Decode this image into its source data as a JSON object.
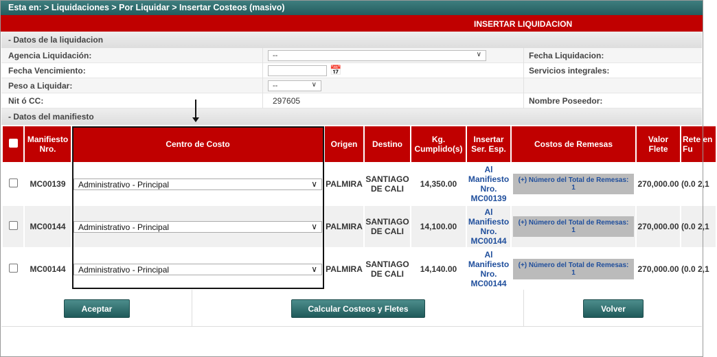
{
  "breadcrumb": "Esta en: > Liquidaciones > Por Liquidar > Insertar Costeos (masivo)",
  "title": "INSERTAR LIQUIDACION",
  "section1": "- Datos de la liquidacion",
  "section2": "- Datos del manifiesto",
  "form": {
    "agencia_label": "Agencia Liquidación:",
    "agencia_value": "--",
    "fecha_liq_label": "Fecha Liquidacion:",
    "fecha_venc_label": "Fecha Vencimiento:",
    "fecha_venc_value": "",
    "servicios_label": "Servicios integrales:",
    "peso_label": "Peso a Liquidar:",
    "peso_value": "--",
    "nit_label": "Nit ó CC:",
    "nit_value": "297605",
    "poseedor_label": "Nombre Poseedor:"
  },
  "table": {
    "headers": [
      "Manifiesto Nro.",
      "Centro de Costo",
      "Origen",
      "Destino",
      "Kg. Cumplido(s)",
      "Insertar Ser. Esp.",
      "Costos de Remesas",
      "Valor Flete",
      "Rete en Fu"
    ],
    "rows": [
      {
        "manifiesto": "MC00139",
        "centro": "Administrativo - Principal",
        "origen": "PALMIRA",
        "destino": "SANTIAGO DE CALI",
        "kg": "14,350.00",
        "insertar": "Al Manifiesto Nro. MC00139",
        "costos": "(+) Número del Total de Remesas: 1",
        "flete": "270,000.00",
        "rete": "(0.0 2,1"
      },
      {
        "manifiesto": "MC00144",
        "centro": "Administrativo - Principal",
        "origen": "PALMIRA",
        "destino": "SANTIAGO DE CALI",
        "kg": "14,100.00",
        "insertar": "Al Manifiesto Nro. MC00144",
        "costos": "(+) Número del Total de Remesas: 1",
        "flete": "270,000.00",
        "rete": "(0.0 2,1"
      },
      {
        "manifiesto": "MC00144",
        "centro": "Administrativo - Principal",
        "origen": "PALMIRA",
        "destino": "SANTIAGO DE CALI",
        "kg": "14,140.00",
        "insertar": "Al Manifiesto Nro. MC00144",
        "costos": "(+) Número del Total de Remesas: 1",
        "flete": "270,000.00",
        "rete": "(0.0 2,1"
      }
    ]
  },
  "buttons": {
    "aceptar": "Aceptar",
    "calcular": "Calcular Costeos y Fletes",
    "volver": "Volver"
  },
  "colors": {
    "header_red": "#c00000",
    "breadcrumb_teal": "#2e6b6b",
    "link_blue": "#1f4e9c"
  }
}
